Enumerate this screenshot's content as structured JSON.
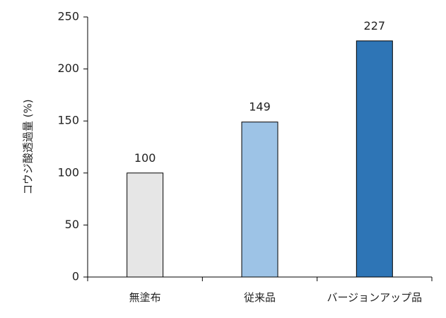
{
  "chart_data": {
    "type": "bar",
    "title": "",
    "xlabel": "",
    "ylabel": "コウジ酸透過量 (%)",
    "categories": [
      "無塗布",
      "従来品",
      "バージョンアップ品"
    ],
    "values": [
      100,
      149,
      227
    ],
    "data_labels": [
      "100",
      "149",
      "227"
    ],
    "bar_colors": [
      "#e6e6e6",
      "#9dc3e6",
      "#2e75b6"
    ],
    "bar_outline": "#000000",
    "ylim": [
      0,
      250
    ],
    "yticks": [
      0,
      50,
      100,
      150,
      200,
      250
    ],
    "grid": false,
    "legend": "none"
  }
}
